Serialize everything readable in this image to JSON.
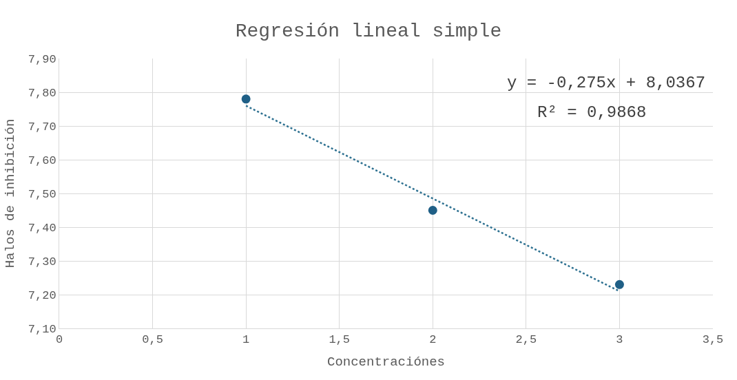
{
  "chart_data": {
    "type": "scatter",
    "title": "Regresión lineal simple",
    "xlabel": "Concentraciónes",
    "ylabel": "Halos de inhibición",
    "series": [
      {
        "color": "#1f5f86",
        "x": [
          1,
          2,
          3
        ],
        "values": [
          7.78,
          7.45,
          7.23
        ],
        "marker": "circle"
      },
      {
        "type": "line",
        "color": "#2e7191",
        "x": [
          1,
          3
        ],
        "values": [
          7.76,
          7.21
        ],
        "line_style": "dotted",
        "marker": "none"
      }
    ],
    "xlim": [
      0,
      3.5
    ],
    "xticks": [
      0,
      {
        "value": 0.5,
        "label": "0,5"
      },
      1,
      {
        "value": 1.5,
        "label": "1,5"
      },
      2,
      {
        "value": 2.5,
        "label": "2,5"
      },
      3,
      {
        "value": 3.5,
        "label": "3,5"
      }
    ],
    "ylim": [
      7.1,
      7.9
    ],
    "yticks": [
      {
        "value": 7.1,
        "label": "7,10"
      },
      {
        "value": 7.2,
        "label": "7,20"
      },
      {
        "value": 7.3,
        "label": "7,30"
      },
      {
        "value": 7.4,
        "label": "7,40"
      },
      {
        "value": 7.5,
        "label": "7,50"
      },
      {
        "value": 7.6,
        "label": "7,60"
      },
      {
        "value": 7.7,
        "label": "7,70"
      },
      {
        "value": 7.8,
        "label": "7,80"
      },
      {
        "value": 7.9,
        "label": "7,90"
      }
    ],
    "annotations": [
      "y = -0,275x + 8,0367",
      "R² = 0,9868"
    ],
    "grid": true
  }
}
